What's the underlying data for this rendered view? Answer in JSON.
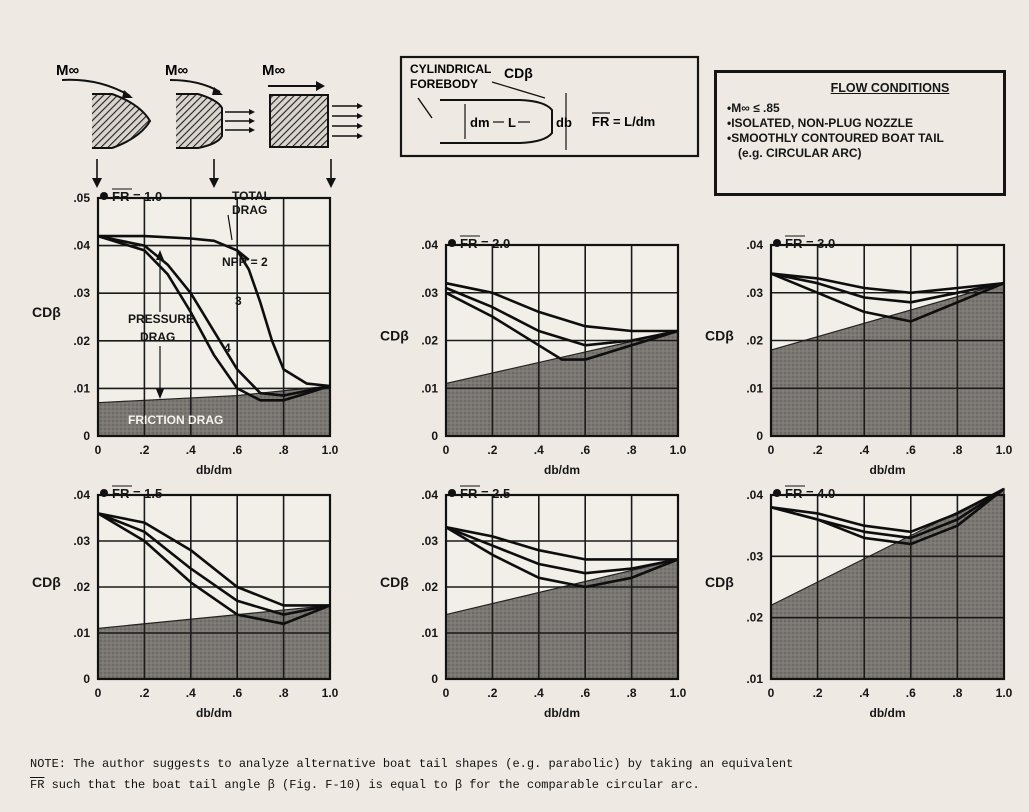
{
  "header": {
    "mach_symbol": "M∞",
    "forebody_label_line1": "CYLINDRICAL",
    "forebody_label_line2": "FOREBODY",
    "cd_label": "CDβ",
    "dm_label": "dm",
    "db_label": "db",
    "L_label": "L",
    "fr_formula": "FR = L/dm"
  },
  "flow_conditions": {
    "title": "FLOW CONDITIONS",
    "items": [
      "M∞ ≤ .85",
      "ISOLATED, NON-PLUG NOZZLE",
      "SMOOTHLY CONTOURED BOAT TAIL",
      "(e.g.  CIRCULAR ARC)"
    ]
  },
  "chart_data": [
    {
      "type": "line",
      "title": "FR = 1.0",
      "xlabel": "db/dm",
      "ylabel": "CDβ",
      "xlim": [
        0,
        1.0
      ],
      "ylim": [
        0,
        0.05
      ],
      "xticks": [
        "0",
        ".2",
        ".4",
        ".6",
        ".8",
        "1.0"
      ],
      "yticks": [
        ".05",
        ".04",
        ".03",
        ".02",
        ".01",
        "0"
      ],
      "friction": {
        "x": [
          0,
          0.2,
          0.4,
          0.6,
          0.8,
          1.0
        ],
        "y": [
          0.007,
          0.0075,
          0.008,
          0.0085,
          0.0095,
          0.0105
        ]
      },
      "series": [
        {
          "name": "TOTAL DRAG",
          "x": [
            0,
            0.2,
            0.4,
            0.5,
            0.6,
            0.65
          ],
          "y": [
            0.042,
            0.042,
            0.0415,
            0.041,
            0.039,
            0.037
          ]
        },
        {
          "name": "NPR = 2",
          "x": [
            0.6,
            0.65,
            0.7,
            0.75,
            0.8,
            0.9,
            1.0
          ],
          "y": [
            0.039,
            0.035,
            0.028,
            0.02,
            0.014,
            0.011,
            0.0105
          ]
        },
        {
          "name": "3",
          "x": [
            0,
            0.2,
            0.3,
            0.4,
            0.5,
            0.6,
            0.7,
            0.8,
            0.9,
            1.0
          ],
          "y": [
            0.042,
            0.04,
            0.036,
            0.03,
            0.022,
            0.014,
            0.009,
            0.0085,
            0.0095,
            0.0105
          ]
        },
        {
          "name": "4",
          "x": [
            0,
            0.2,
            0.3,
            0.4,
            0.5,
            0.6,
            0.7,
            0.8,
            0.9,
            1.0
          ],
          "y": [
            0.042,
            0.039,
            0.034,
            0.026,
            0.017,
            0.01,
            0.0075,
            0.0075,
            0.009,
            0.0105
          ]
        }
      ],
      "annotations": [
        "TOTAL",
        "DRAG",
        "NPR = 2",
        "3",
        "4",
        "PRESSURE",
        "DRAG",
        "FRICTION DRAG"
      ]
    },
    {
      "type": "line",
      "title": "FR = 2.0",
      "xlabel": "db/dm",
      "ylabel": "CDβ",
      "xlim": [
        0,
        1.0
      ],
      "ylim": [
        0,
        0.04
      ],
      "xticks": [
        "0",
        ".2",
        ".4",
        ".6",
        ".8",
        "1.0"
      ],
      "yticks": [
        ".04",
        ".03",
        ".02",
        ".01",
        "0"
      ],
      "friction": {
        "x": [
          0,
          1.0
        ],
        "y": [
          0.011,
          0.022
        ]
      },
      "series": [
        {
          "x": [
            0,
            0.2,
            0.4,
            0.6,
            0.8,
            1.0
          ],
          "y": [
            0.032,
            0.03,
            0.026,
            0.023,
            0.022,
            0.022
          ]
        },
        {
          "x": [
            0,
            0.2,
            0.4,
            0.6,
            0.8,
            1.0
          ],
          "y": [
            0.031,
            0.027,
            0.022,
            0.019,
            0.02,
            0.022
          ]
        },
        {
          "x": [
            0,
            0.2,
            0.4,
            0.5,
            0.6,
            0.8,
            1.0
          ],
          "y": [
            0.03,
            0.025,
            0.019,
            0.016,
            0.016,
            0.019,
            0.022
          ]
        }
      ]
    },
    {
      "type": "line",
      "title": "FR = 3.0",
      "xlabel": "db/dm",
      "ylabel": "CDβ",
      "xlim": [
        0,
        1.0
      ],
      "ylim": [
        0,
        0.04
      ],
      "xticks": [
        "0",
        ".2",
        ".4",
        ".6",
        ".8",
        "1.0"
      ],
      "yticks": [
        ".04",
        ".03",
        ".02",
        ".01",
        "0"
      ],
      "friction": {
        "x": [
          0,
          1.0
        ],
        "y": [
          0.018,
          0.032
        ]
      },
      "series": [
        {
          "x": [
            0,
            0.2,
            0.4,
            0.6,
            0.8,
            1.0
          ],
          "y": [
            0.034,
            0.033,
            0.031,
            0.03,
            0.031,
            0.032
          ]
        },
        {
          "x": [
            0,
            0.2,
            0.4,
            0.6,
            0.8,
            1.0
          ],
          "y": [
            0.034,
            0.032,
            0.029,
            0.028,
            0.03,
            0.032
          ]
        },
        {
          "x": [
            0,
            0.2,
            0.4,
            0.6,
            0.8,
            1.0
          ],
          "y": [
            0.034,
            0.03,
            0.026,
            0.024,
            0.028,
            0.032
          ]
        }
      ]
    },
    {
      "type": "line",
      "title": "FR = 1.5",
      "xlabel": "db/dm",
      "ylabel": "CDβ",
      "xlim": [
        0,
        1.0
      ],
      "ylim": [
        0,
        0.04
      ],
      "xticks": [
        "0",
        ".2",
        ".4",
        ".6",
        ".8",
        "1.0"
      ],
      "yticks": [
        ".04",
        ".03",
        ".02",
        ".01",
        "0"
      ],
      "friction": {
        "x": [
          0,
          1.0
        ],
        "y": [
          0.011,
          0.016
        ]
      },
      "series": [
        {
          "x": [
            0,
            0.2,
            0.4,
            0.6,
            0.8,
            1.0
          ],
          "y": [
            0.036,
            0.034,
            0.028,
            0.02,
            0.016,
            0.016
          ]
        },
        {
          "x": [
            0,
            0.2,
            0.4,
            0.6,
            0.8,
            1.0
          ],
          "y": [
            0.036,
            0.032,
            0.024,
            0.017,
            0.014,
            0.016
          ]
        },
        {
          "x": [
            0,
            0.2,
            0.4,
            0.6,
            0.8,
            1.0
          ],
          "y": [
            0.036,
            0.03,
            0.021,
            0.014,
            0.012,
            0.016
          ]
        }
      ]
    },
    {
      "type": "line",
      "title": "FR = 2.5",
      "xlabel": "db/dm",
      "ylabel": "CDβ",
      "xlim": [
        0,
        1.0
      ],
      "ylim": [
        0,
        0.04
      ],
      "xticks": [
        "0",
        ".2",
        ".4",
        ".6",
        ".8",
        "1.0"
      ],
      "yticks": [
        ".04",
        ".03",
        ".02",
        ".01",
        "0"
      ],
      "friction": {
        "x": [
          0,
          1.0
        ],
        "y": [
          0.014,
          0.026
        ]
      },
      "series": [
        {
          "x": [
            0,
            0.2,
            0.4,
            0.6,
            0.8,
            1.0
          ],
          "y": [
            0.033,
            0.031,
            0.028,
            0.026,
            0.026,
            0.026
          ]
        },
        {
          "x": [
            0,
            0.2,
            0.4,
            0.6,
            0.8,
            1.0
          ],
          "y": [
            0.033,
            0.029,
            0.025,
            0.023,
            0.024,
            0.026
          ]
        },
        {
          "x": [
            0,
            0.2,
            0.4,
            0.6,
            0.8,
            1.0
          ],
          "y": [
            0.033,
            0.027,
            0.022,
            0.02,
            0.022,
            0.026
          ]
        }
      ]
    },
    {
      "type": "line",
      "title": "FR = 4.0",
      "xlabel": "db/dm",
      "ylabel": "CDβ",
      "xlim": [
        0,
        1.0
      ],
      "ylim": [
        0.01,
        0.04
      ],
      "xticks": [
        "0",
        ".2",
        ".4",
        ".6",
        ".8",
        "1.0"
      ],
      "yticks": [
        ".04",
        ".03",
        ".02",
        ".01"
      ],
      "friction": {
        "x": [
          0,
          1.0
        ],
        "y": [
          0.022,
          0.041
        ]
      },
      "series": [
        {
          "x": [
            0,
            0.2,
            0.4,
            0.6,
            0.8,
            1.0
          ],
          "y": [
            0.038,
            0.037,
            0.035,
            0.034,
            0.037,
            0.041
          ]
        },
        {
          "x": [
            0,
            0.2,
            0.4,
            0.6,
            0.8,
            1.0
          ],
          "y": [
            0.038,
            0.036,
            0.034,
            0.033,
            0.036,
            0.041
          ]
        },
        {
          "x": [
            0,
            0.2,
            0.4,
            0.6,
            0.8,
            1.0
          ],
          "y": [
            0.038,
            0.036,
            0.033,
            0.032,
            0.035,
            0.041
          ]
        }
      ]
    }
  ],
  "note": {
    "line1": "NOTE: The author suggests to analyze alternative boat tail shapes (e.g. parabolic) by taking an equivalent",
    "fr_symbol": "FR",
    "line2_rest": " such that the boat tail angle β (Fig. F-10) is equal to β for the comparable circular arc."
  }
}
